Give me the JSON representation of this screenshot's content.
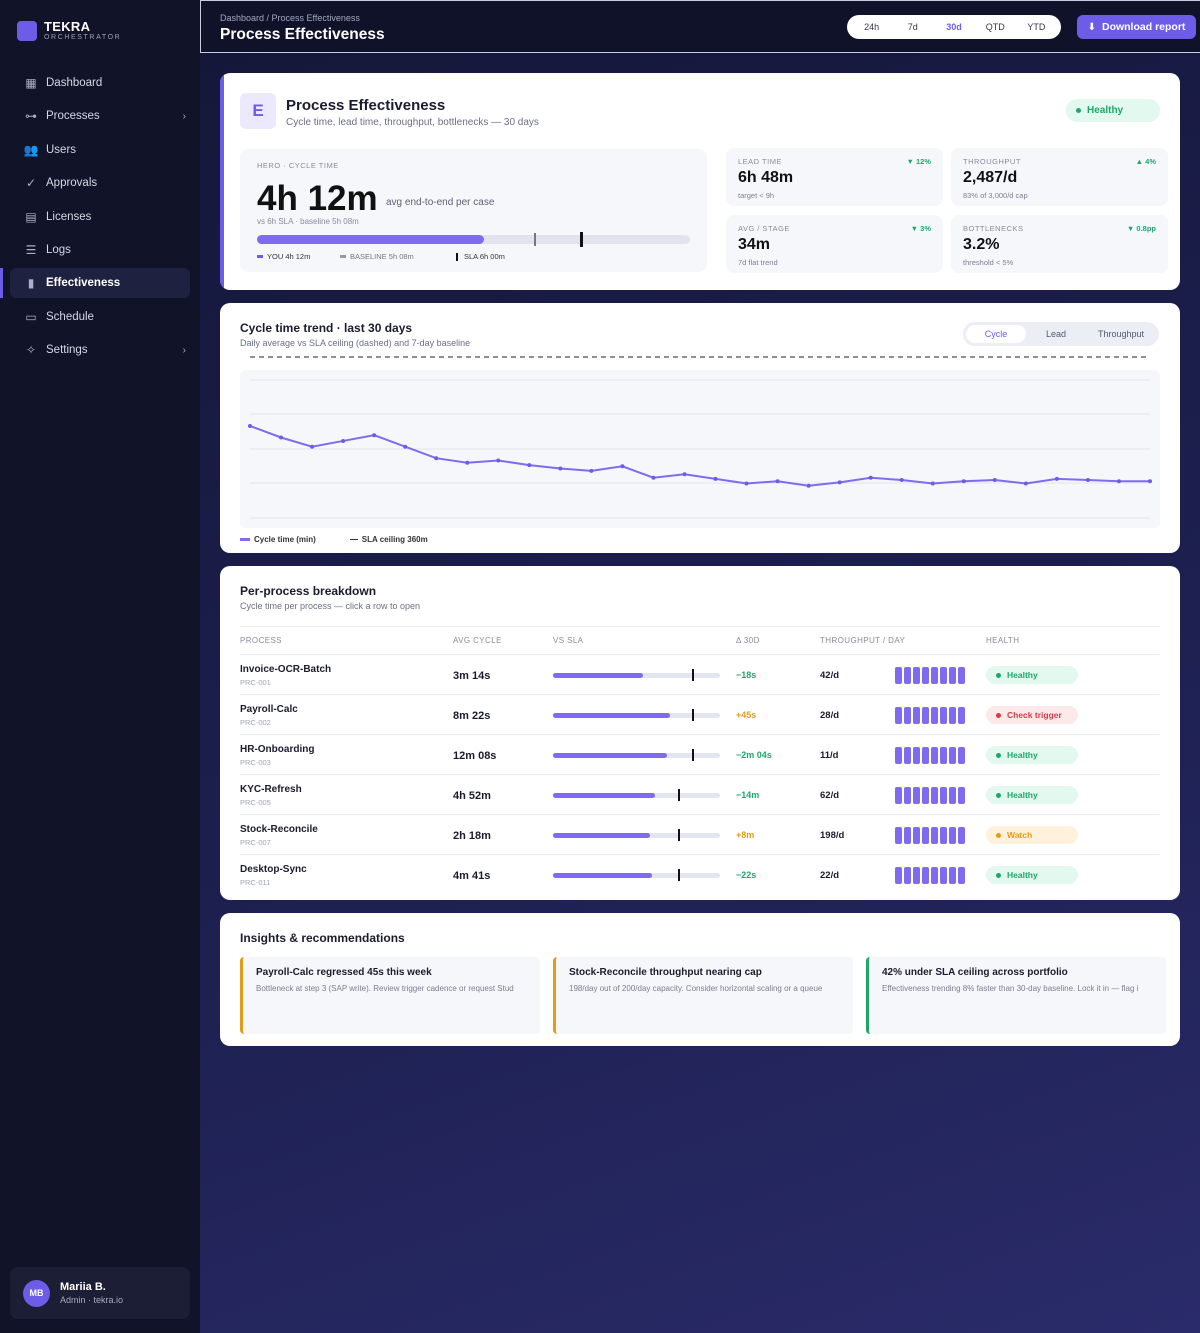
{
  "brand": {
    "name": "TEKRA",
    "sub": "ORCHESTRATOR"
  },
  "nav": [
    {
      "label": "Dashboard",
      "icon": "grid-icon"
    },
    {
      "label": "Processes",
      "icon": "flow-icon",
      "chevron": "›"
    },
    {
      "label": "Users",
      "icon": "users-icon"
    },
    {
      "label": "Approvals",
      "icon": "check-circle-icon"
    },
    {
      "label": "Licenses",
      "icon": "document-icon"
    },
    {
      "label": "Logs",
      "icon": "list-icon"
    },
    {
      "label": "Effectiveness",
      "icon": "bar-chart-icon",
      "active": true
    },
    {
      "label": "Schedule",
      "icon": "calendar-icon"
    },
    {
      "label": "Settings",
      "icon": "gear-icon",
      "chevron": "›"
    }
  ],
  "user": {
    "initials": "MB",
    "name": "Mariia B.",
    "role": "Admin · tekra.io"
  },
  "header": {
    "breadcrumb": "Dashboard / Process Effectiveness",
    "title": "Process Effectiveness",
    "ranges": [
      "24h",
      "7d",
      "30d",
      "QTD",
      "YTD"
    ],
    "selected_range": "30d",
    "download": "Download report"
  },
  "hero": {
    "badge": "E",
    "title": "Process Effectiveness",
    "subtitle": "Cycle time, lead time, throughput, bottlenecks — 30 days",
    "status": "Healthy",
    "label": "HERO · CYCLE TIME",
    "value": "4h 12m",
    "value_desc": "avg end-to-end per case",
    "vs": "vs 6h SLA · baseline 5h 08m",
    "legend": {
      "you": "YOU 4h 12m",
      "baseline": "BASELINE 5h 08m",
      "sla": "SLA 6h 00m"
    }
  },
  "kpis": [
    {
      "label": "LEAD TIME",
      "value": "6h 48m",
      "sub": "target < 9h",
      "delta": "▼ 12%"
    },
    {
      "label": "THROUGHPUT",
      "value": "2,487/d",
      "sub": "83% of 3,000/d cap",
      "delta": "▲ 4%"
    },
    {
      "label": "AVG / STAGE",
      "value": "34m",
      "sub": "7d flat trend",
      "delta": "▼ 3%"
    },
    {
      "label": "BOTTLENECKS",
      "value": "3.2%",
      "sub": "threshold < 5%",
      "delta": "▼ 0.8pp"
    }
  ],
  "trend": {
    "title": "Cycle time trend · last 30 days",
    "subtitle": "Daily average vs SLA ceiling (dashed) and 7-day baseline",
    "tabs": [
      "Cycle",
      "Lead",
      "Throughput"
    ],
    "selected_tab": "Cycle",
    "legend": {
      "series": "Cycle time (min)",
      "sla": "SLA ceiling 360m"
    }
  },
  "chart_data": {
    "type": "line",
    "x": [
      1,
      2,
      3,
      4,
      5,
      6,
      7,
      8,
      9,
      10,
      11,
      12,
      13,
      14,
      15,
      16,
      17,
      18,
      19,
      20,
      21,
      22,
      23,
      24,
      25,
      26,
      27,
      28,
      29,
      30
    ],
    "series": [
      {
        "name": "Cycle time (min)",
        "values": [
          300,
          290,
          282,
          287,
          292,
          282,
          272,
          268,
          270,
          266,
          263,
          261,
          265,
          255,
          258,
          254,
          250,
          252,
          248,
          251,
          255,
          253,
          250,
          252,
          253,
          250,
          254,
          253,
          252,
          252
        ]
      }
    ],
    "sla_ceiling": 360,
    "ylim": [
      220,
      360
    ],
    "grid": true,
    "legend": "bottom-left"
  },
  "breakdown": {
    "title": "Per-process breakdown",
    "subtitle": "Cycle time per process — click a row to open",
    "columns": [
      "PROCESS",
      "AVG CYCLE",
      "VS SLA",
      "Δ 30D",
      "THROUGHPUT / DAY",
      "HEALTH"
    ],
    "rows": [
      {
        "name": "Invoice-OCR-Batch",
        "id": "PRC-001",
        "avg": "3m 14s",
        "sla_fill": 0.54,
        "sla_mark": 0.83,
        "delta": "−18s",
        "delta_color": "#1ea868",
        "throughput": "42/d",
        "health": "Healthy",
        "tone": "green"
      },
      {
        "name": "Payroll-Calc",
        "id": "PRC-002",
        "avg": "8m 22s",
        "sla_fill": 0.7,
        "sla_mark": 0.83,
        "delta": "+45s",
        "delta_color": "#e39b1c",
        "throughput": "28/d",
        "health": "Check trigger",
        "tone": "red"
      },
      {
        "name": "HR-Onboarding",
        "id": "PRC-003",
        "avg": "12m 08s",
        "sla_fill": 0.68,
        "sla_mark": 0.83,
        "delta": "−2m 04s",
        "delta_color": "#1ea868",
        "throughput": "11/d",
        "health": "Healthy",
        "tone": "green"
      },
      {
        "name": "KYC-Refresh",
        "id": "PRC-005",
        "avg": "4h 52m",
        "sla_fill": 0.61,
        "sla_mark": 0.75,
        "delta": "−14m",
        "delta_color": "#1ea868",
        "throughput": "62/d",
        "health": "Healthy",
        "tone": "green"
      },
      {
        "name": "Stock-Reconcile",
        "id": "PRC-007",
        "avg": "2h 18m",
        "sla_fill": 0.58,
        "sla_mark": 0.75,
        "delta": "+8m",
        "delta_color": "#e39b1c",
        "throughput": "198/d",
        "health": "Watch",
        "tone": "amber"
      },
      {
        "name": "Desktop-Sync",
        "id": "PRC-011",
        "avg": "4m 41s",
        "sla_fill": 0.59,
        "sla_mark": 0.75,
        "delta": "−22s",
        "delta_color": "#1ea868",
        "throughput": "22/d",
        "health": "Healthy",
        "tone": "green"
      }
    ]
  },
  "insights": {
    "title": "Insights & recommendations",
    "items": [
      {
        "title": "Payroll-Calc regressed 45s this week",
        "body": "Bottleneck at step 3 (SAP write). Review trigger cadence or request Stud",
        "color": "#e39b1c"
      },
      {
        "title": "Stock-Reconcile throughput nearing cap",
        "body": "198/day out of 200/day capacity. Consider horizontal scaling or a queue",
        "color": "#e39b1c"
      },
      {
        "title": "42% under SLA ceiling across portfolio",
        "body": "Effectiveness trending 8% faster than 30-day baseline. Lock it in — flag i",
        "color": "#1ea868"
      }
    ]
  }
}
